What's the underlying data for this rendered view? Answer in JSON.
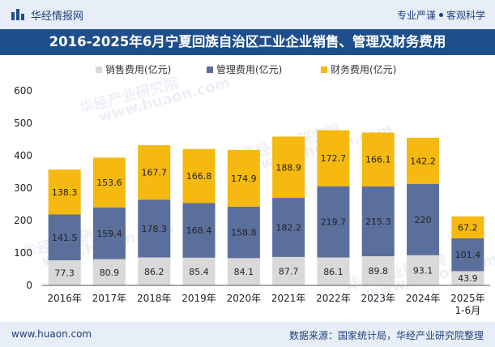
{
  "header": {
    "brand": "华经情报网",
    "tagline_left": "专业严谨",
    "tagline_right": "客观科学"
  },
  "title": "2016-2025年6月宁夏回族自治区工业企业销售、管理及财务费用",
  "footer": {
    "website": "www.huaon.com",
    "source": "数据来源：国家统计局，华经产业研究院整理"
  },
  "watermark": {
    "cn": "华经产业研究院",
    "url": "www.huaon.com"
  },
  "chart_data": {
    "type": "bar",
    "stacked": true,
    "title": "2016-2025年6月宁夏回族自治区工业企业销售、管理及财务费用",
    "categories": [
      "2016年",
      "2017年",
      "2018年",
      "2019年",
      "2020年",
      "2021年",
      "2022年",
      "2023年",
      "2024年",
      "2025年\n1-6月"
    ],
    "series": [
      {
        "name": "销售费用(亿元)",
        "color": "#d9d9d9",
        "values": [
          77.3,
          80.9,
          86.2,
          85.4,
          84.1,
          87.7,
          86.1,
          89.8,
          93.1,
          43.9
        ]
      },
      {
        "name": "管理费用(亿元)",
        "color": "#5b6f9d",
        "values": [
          141.5,
          159.4,
          178.3,
          168.4,
          158.8,
          182.2,
          219.7,
          215.3,
          220,
          101.4
        ]
      },
      {
        "name": "财务费用(亿元)",
        "color": "#f5b90f",
        "values": [
          138.3,
          153.6,
          167.7,
          166.8,
          174.9,
          188.9,
          172.7,
          166.1,
          142.2,
          67.2
        ]
      }
    ],
    "ylim": [
      0,
      600
    ],
    "yticks": [
      0,
      100,
      200,
      300,
      400,
      500,
      600
    ],
    "xlabel": "",
    "ylabel": "",
    "legend_position": "top-center",
    "grid": false
  }
}
